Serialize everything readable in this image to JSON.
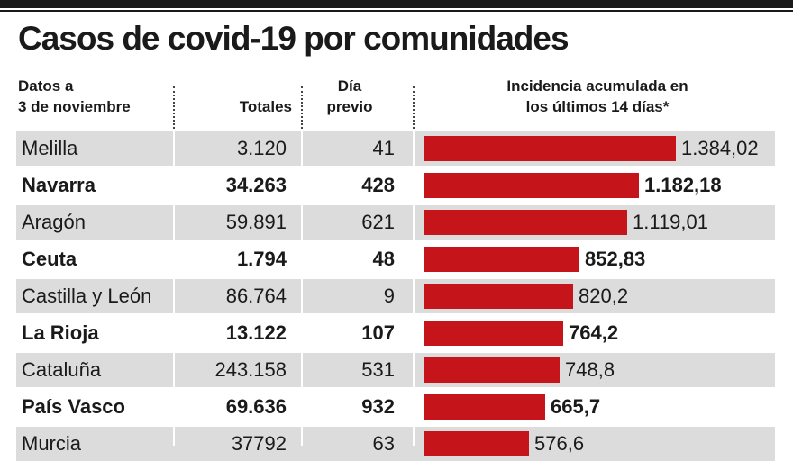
{
  "title": "Casos de covid-19 por comunidades",
  "headers": {
    "date_line1": "Datos a",
    "date_line2": "3 de noviembre",
    "totals": "Totales",
    "prev_line1": "Día",
    "prev_line2": "previo",
    "incidence_line1": "Incidencia acumulada en",
    "incidence_line2": "los últimos 14 días*"
  },
  "colors": {
    "bar": "#c5151b",
    "shade": "#dcdcdc"
  },
  "chart_data": {
    "type": "bar",
    "orientation": "horizontal",
    "categories": [
      "Melilla",
      "Navarra",
      "Aragón",
      "Ceuta",
      "Castilla y León",
      "La Rioja",
      "Cataluña",
      "País Vasco",
      "Murcia"
    ],
    "series": [
      {
        "values": [
          1384.02,
          1182.18,
          1119.01,
          852.83,
          820.2,
          764.2,
          748.8,
          665.7,
          576.6
        ]
      }
    ],
    "rows": [
      {
        "name": "Melilla",
        "totals": "3.120",
        "prev": "41",
        "incidence": 1384.02,
        "label": "1.384,02"
      },
      {
        "name": "Navarra",
        "totals": "34.263",
        "prev": "428",
        "incidence": 1182.18,
        "label": "1.182,18"
      },
      {
        "name": "Aragón",
        "totals": "59.891",
        "prev": "621",
        "incidence": 1119.01,
        "label": "1.119,01"
      },
      {
        "name": "Ceuta",
        "totals": "1.794",
        "prev": "48",
        "incidence": 852.83,
        "label": "852,83"
      },
      {
        "name": "Castilla y León",
        "totals": "86.764",
        "prev": "9",
        "incidence": 820.2,
        "label": "820,2"
      },
      {
        "name": "La Rioja",
        "totals": "13.122",
        "prev": "107",
        "incidence": 764.2,
        "label": "764,2"
      },
      {
        "name": "Cataluña",
        "totals": "243.158",
        "prev": "531",
        "incidence": 748.8,
        "label": "748,8"
      },
      {
        "name": "País Vasco",
        "totals": "69.636",
        "prev": "932",
        "incidence": 665.7,
        "label": "665,7"
      },
      {
        "name": "Murcia",
        "totals": "37792",
        "prev": "63",
        "incidence": 576.6,
        "label": "576,6"
      }
    ],
    "xlim": [
      0,
      1384.02
    ]
  }
}
